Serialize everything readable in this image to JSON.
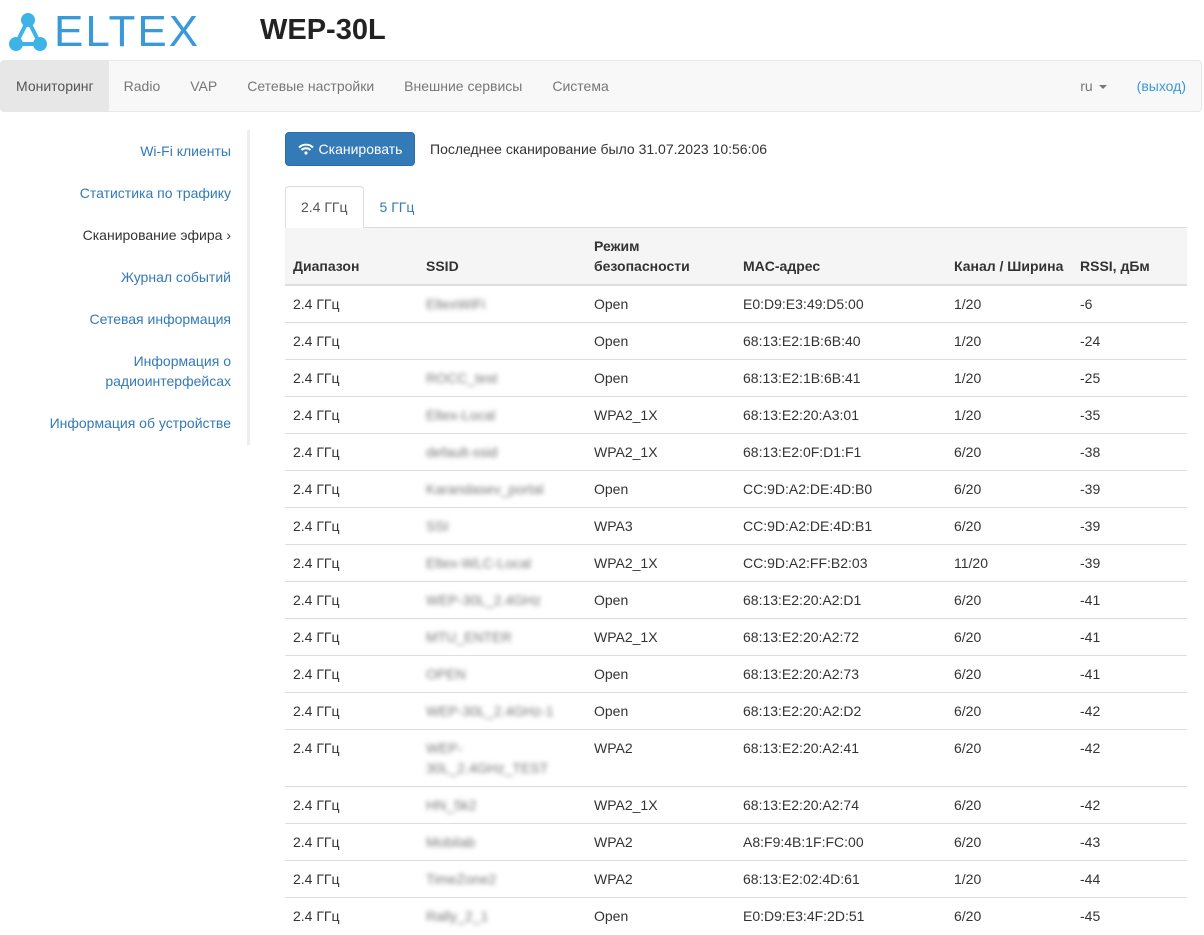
{
  "header": {
    "logo": "ELTEX",
    "model": "WEP-30L"
  },
  "nav": {
    "items": [
      "Мониторинг",
      "Radio",
      "VAP",
      "Сетевые настройки",
      "Внешние сервисы",
      "Система"
    ],
    "lang": "ru",
    "logout": "(выход)"
  },
  "sidebar": {
    "items": [
      "Wi-Fi клиенты",
      "Статистика по трафику",
      "Сканирование эфира ›",
      "Журнал событий",
      "Сетевая информация",
      "Информация о радиоинтерфейсах",
      "Информация об устройстве"
    ]
  },
  "scan": {
    "button": "Сканировать",
    "last": "Последнее сканирование было 31.07.2023 10:56:06"
  },
  "tabs": [
    "2.4 ГГц",
    "5 ГГц"
  ],
  "table": {
    "headers": [
      "Диапазон",
      "SSID",
      "Режим безопасности",
      "MAC-адрес",
      "Канал / Ширина",
      "RSSI, дБм"
    ],
    "rows": [
      [
        "2.4 ГГц",
        "EltexWiFi",
        "Open",
        "E0:D9:E3:49:D5:00",
        "1/20",
        "-6"
      ],
      [
        "2.4 ГГц",
        "",
        "Open",
        "68:13:E2:1B:6B:40",
        "1/20",
        "-24"
      ],
      [
        "2.4 ГГц",
        "ROCC_test",
        "Open",
        "68:13:E2:1B:6B:41",
        "1/20",
        "-25"
      ],
      [
        "2.4 ГГц",
        "Eltex-Local",
        "WPA2_1X",
        "68:13:E2:20:A3:01",
        "1/20",
        "-35"
      ],
      [
        "2.4 ГГц",
        "default-ssid",
        "WPA2_1X",
        "68:13:E2:0F:D1:F1",
        "6/20",
        "-38"
      ],
      [
        "2.4 ГГц",
        "Karandasev_portal",
        "Open",
        "CC:9D:A2:DE:4D:B0",
        "6/20",
        "-39"
      ],
      [
        "2.4 ГГц",
        "SSI",
        "WPA3",
        "CC:9D:A2:DE:4D:B1",
        "6/20",
        "-39"
      ],
      [
        "2.4 ГГц",
        "Eltex-WLC-Local",
        "WPA2_1X",
        "CC:9D:A2:FF:B2:03",
        "11/20",
        "-39"
      ],
      [
        "2.4 ГГц",
        "WEP-30L_2.4GHz",
        "Open",
        "68:13:E2:20:A2:D1",
        "6/20",
        "-41"
      ],
      [
        "2.4 ГГц",
        "MTU_ENTER",
        "WPA2_1X",
        "68:13:E2:20:A2:72",
        "6/20",
        "-41"
      ],
      [
        "2.4 ГГц",
        "OPEN",
        "Open",
        "68:13:E2:20:A2:73",
        "6/20",
        "-41"
      ],
      [
        "2.4 ГГц",
        "WEP-30L_2.4GHz-1",
        "Open",
        "68:13:E2:20:A2:D2",
        "6/20",
        "-42"
      ],
      [
        "2.4 ГГц",
        "WEP-30L_2.4GHz_TEST",
        "WPA2",
        "68:13:E2:20:A2:41",
        "6/20",
        "-42"
      ],
      [
        "2.4 ГГц",
        "HN_5k2",
        "WPA2_1X",
        "68:13:E2:20:A2:74",
        "6/20",
        "-42"
      ],
      [
        "2.4 ГГц",
        "Mobilab",
        "WPA2",
        "A8:F9:4B:1F:FC:00",
        "6/20",
        "-43"
      ],
      [
        "2.4 ГГц",
        "TimeZone2",
        "WPA2",
        "68:13:E2:02:4D:61",
        "1/20",
        "-44"
      ],
      [
        "2.4 ГГц",
        "Rally_2_1",
        "Open",
        "E0:D9:E3:4F:2D:51",
        "6/20",
        "-45"
      ]
    ]
  }
}
